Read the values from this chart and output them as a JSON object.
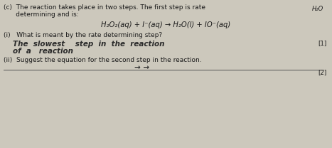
{
  "bg_color": "#ccc8bc",
  "text_color": "#1a1a1a",
  "handwrite_color": "#2a2a2a",
  "title_prefix": "(c)  The reaction takes place in two steps. The first step is rate",
  "title_line2": "      determining and is:",
  "top_right": "H₂O",
  "equation": "H₂O₂(aq) + I⁻(aq) → H₂O(l) + IO⁻(aq)",
  "q1_text": "(i)   What is meant by the rate determining step?",
  "answer1_line1": "The  slowest    step  in  the  reaction",
  "answer1_mark": "[1]",
  "answer1_line2": "of  a   reaction",
  "q2_text": "(ii)  Suggest the equation for the second step in the reaction.",
  "answer2_text": "→ →",
  "answer2_mark": "[2]",
  "fs_main": 6.5,
  "fs_eq": 7.2,
  "fs_answer": 7.5,
  "fs_mark": 6.2,
  "fs_topright": 6.0
}
